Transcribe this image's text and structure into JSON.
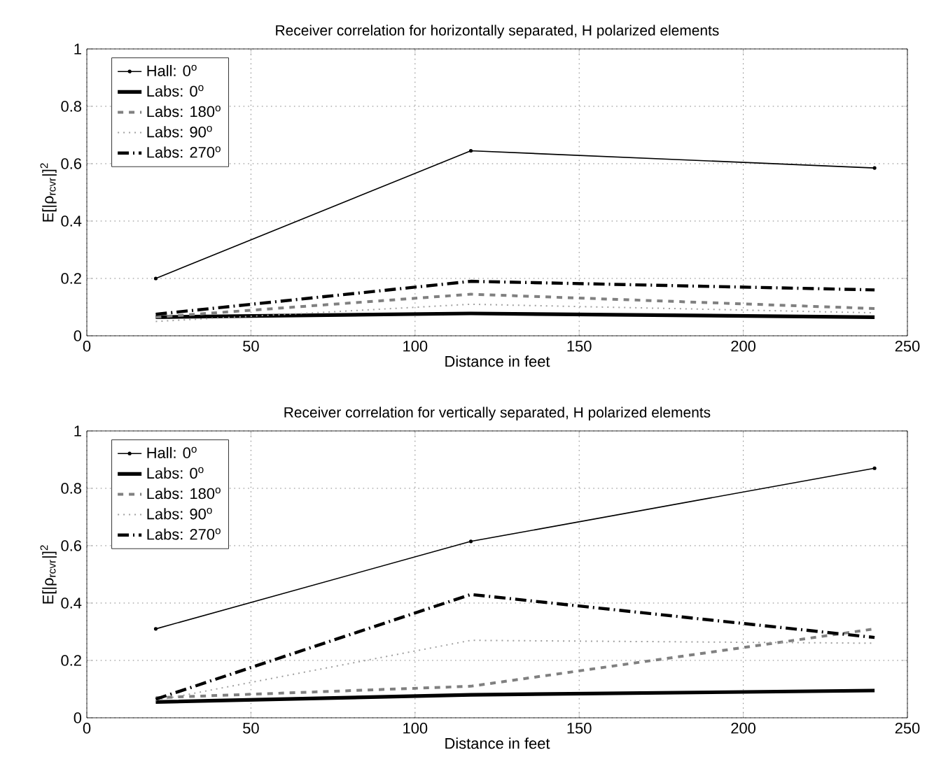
{
  "chart_data": [
    {
      "type": "line",
      "title": "Receiver correlation for horizontally separated, H polarized elements",
      "xlabel": "Distance in feet",
      "ylabel": "E[|ρ$_{rcvr}$|]$^{2}$",
      "x": [
        21,
        117,
        240
      ],
      "xlim": [
        0,
        250
      ],
      "xticks": [
        0,
        50,
        100,
        150,
        200,
        250
      ],
      "ylim": [
        0,
        1
      ],
      "yticks": [
        0,
        0.2,
        0.4,
        0.6,
        0.8,
        1
      ],
      "grid": true,
      "legend": "top left",
      "series": [
        {
          "name": "Hall:      0$^{o}$",
          "color": "#000000",
          "line_style": "solid",
          "marker": "circle",
          "values": [
            0.2,
            0.645,
            0.585
          ]
        },
        {
          "name": "Labs:      0$^{o}$",
          "color": "#000000",
          "line_style": "solid",
          "values": [
            0.065,
            0.078,
            0.065
          ]
        },
        {
          "name": "Labs: 180$^{o}$",
          "color": "#808080",
          "line_style": "dashed",
          "values": [
            0.065,
            0.145,
            0.095
          ]
        },
        {
          "name": "Labs:    90$^{o}$",
          "color": "#a0a0a0",
          "line_style": "dotted",
          "values": [
            0.05,
            0.11,
            0.08
          ]
        },
        {
          "name": "Labs: 270$^{o}$",
          "color": "#000000",
          "line_style": "dashdot",
          "values": [
            0.075,
            0.19,
            0.16
          ]
        }
      ]
    },
    {
      "type": "line",
      "title": "Receiver correlation for vertically separated, H polarized elements",
      "xlabel": "Distance in feet",
      "ylabel": "E[|ρ$_{rcvr}$|]$^{2}$",
      "x": [
        21,
        117,
        240
      ],
      "xlim": [
        0,
        250
      ],
      "xticks": [
        0,
        50,
        100,
        150,
        200,
        250
      ],
      "ylim": [
        0,
        1
      ],
      "yticks": [
        0,
        0.2,
        0.4,
        0.6,
        0.8,
        1
      ],
      "grid": true,
      "legend": "top left",
      "series": [
        {
          "name": "Hall:      0$^{o}$",
          "color": "#000000",
          "line_style": "solid",
          "marker": "circle",
          "values": [
            0.31,
            0.615,
            0.87
          ]
        },
        {
          "name": "Labs:      0$^{o}$",
          "color": "#000000",
          "line_style": "solid",
          "values": [
            0.055,
            0.08,
            0.095
          ]
        },
        {
          "name": "Labs: 180$^{o}$",
          "color": "#808080",
          "line_style": "dashed",
          "values": [
            0.07,
            0.11,
            0.31
          ]
        },
        {
          "name": "Labs:    90$^{o}$",
          "color": "#a0a0a0",
          "line_style": "dotted",
          "values": [
            0.06,
            0.27,
            0.26
          ]
        },
        {
          "name": "Labs: 270$^{o}$",
          "color": "#000000",
          "line_style": "dashdot",
          "values": [
            0.065,
            0.43,
            0.28
          ]
        }
      ]
    }
  ]
}
